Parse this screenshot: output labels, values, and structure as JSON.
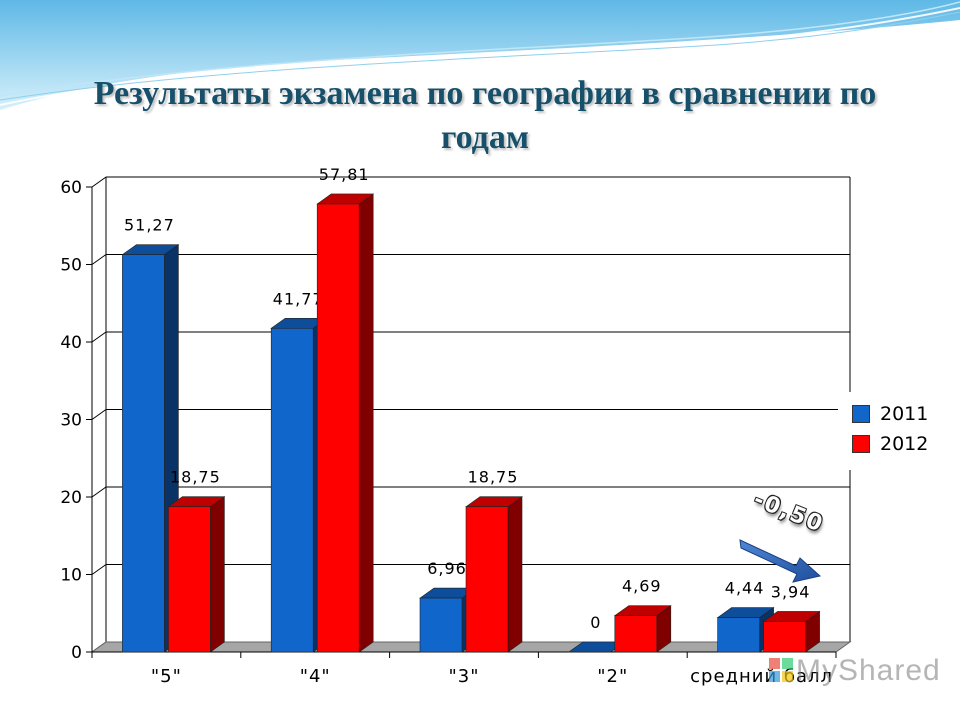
{
  "title": "Результаты экзамена по географии  в сравнении по годам",
  "delta_annotation": "-0,50",
  "watermark": "MyShared",
  "colors": {
    "2011": "#1166cc",
    "2012": "#ff0000",
    "grid": "#000000",
    "floor": "#a6a6a6"
  },
  "chart_data": {
    "type": "bar",
    "categories": [
      "\"5\"",
      "\"4\"",
      "\"3\"",
      "\"2\"",
      "средний балл"
    ],
    "series": [
      {
        "name": "2011",
        "values": [
          51.27,
          41.77,
          6.96,
          0,
          4.44
        ],
        "labels": [
          "51,27",
          "41,77",
          "6,96",
          "0",
          "4,44"
        ]
      },
      {
        "name": "2012",
        "values": [
          18.75,
          57.81,
          18.75,
          4.69,
          3.94
        ],
        "labels": [
          "18,75",
          "57,81",
          "18,75",
          "4,69",
          "3,94"
        ]
      }
    ],
    "ylim": [
      0,
      60
    ],
    "yticks": [
      0,
      10,
      20,
      30,
      40,
      50,
      60
    ],
    "grid": true,
    "legend": "right",
    "style": "3d-clustered-column"
  }
}
